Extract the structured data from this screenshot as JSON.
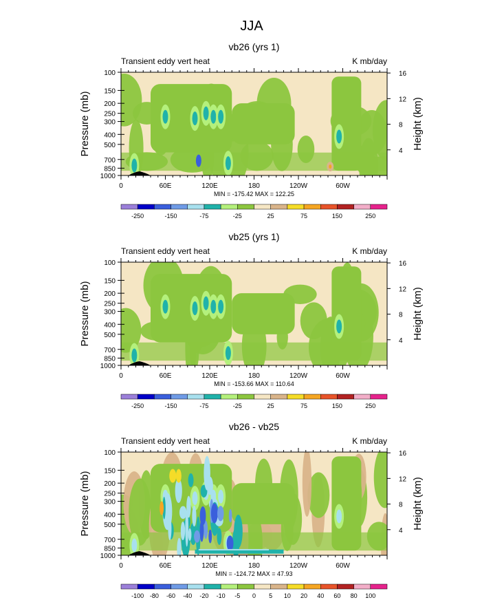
{
  "main_title": "JJA",
  "x_ticks": [
    "0",
    "60E",
    "120E",
    "180",
    "120W",
    "60W"
  ],
  "pressure_ticks": [
    "100",
    "150",
    "200",
    "250",
    "300",
    "400",
    "500",
    "700",
    "850",
    "1000"
  ],
  "height_ticks": [
    "16",
    "12",
    "8",
    "4"
  ],
  "y_label_left": "Pressure (mb)",
  "y_label_right": "Height (km)",
  "colors": {
    "palette_main": [
      "#9b7fd9",
      "#0000c8",
      "#3a5fdc",
      "#6f9be6",
      "#a8e0ee",
      "#20b2aa",
      "#b4f07c",
      "#8cc63f",
      "#f5e6c4",
      "#d9b48a",
      "#f5dc28",
      "#f5a623",
      "#e8542a",
      "#b22222",
      "#f2aec8",
      "#e6238c"
    ],
    "palette_diff": [
      "#9b7fd9",
      "#0000c8",
      "#3a5fdc",
      "#6f9be6",
      "#a8e0ee",
      "#20b2aa",
      "#b4f07c",
      "#8cc63f",
      "#f5e6c4",
      "#d9b48a",
      "#f5dc28",
      "#f5a623",
      "#e8542a",
      "#b22222",
      "#f2aec8",
      "#e6238c"
    ]
  },
  "chart_data": [
    {
      "type": "heatmap",
      "title": "vb26 (yrs 1)",
      "left_label": "Transient eddy vert heat",
      "right_label": "K mb/day",
      "xlabel": "",
      "ylabel": "Pressure (mb)",
      "y2label": "Height (km)",
      "xlim": [
        0,
        360
      ],
      "ylim": [
        1000,
        100
      ],
      "stats": "MIN = -175.42  MAX = 122.25",
      "colorbar_levels": [
        -250,
        -200,
        -150,
        -100,
        -75,
        -50,
        -25,
        -10,
        10,
        25,
        50,
        75,
        100,
        150,
        200,
        250
      ],
      "colorbar_labels": [
        "-250",
        "-150",
        "-75",
        "-25",
        "25",
        "75",
        "150",
        "250"
      ]
    },
    {
      "type": "heatmap",
      "title": "vb25 (yrs 1)",
      "left_label": "Transient eddy vert heat",
      "right_label": "K mb/day",
      "xlabel": "",
      "ylabel": "Pressure (mb)",
      "y2label": "Height (km)",
      "xlim": [
        0,
        360
      ],
      "ylim": [
        1000,
        100
      ],
      "stats": "MIN = -153.66  MAX = 110.64",
      "colorbar_levels": [
        -250,
        -200,
        -150,
        -100,
        -75,
        -50,
        -25,
        -10,
        10,
        25,
        50,
        75,
        100,
        150,
        200,
        250
      ],
      "colorbar_labels": [
        "-250",
        "-150",
        "-75",
        "-25",
        "25",
        "75",
        "150",
        "250"
      ]
    },
    {
      "type": "heatmap",
      "title": "vb26 - vb25",
      "left_label": "Transient eddy vert heat",
      "right_label": "K mb/day",
      "xlabel": "",
      "ylabel": "Pressure (mb)",
      "y2label": "Height (km)",
      "xlim": [
        0,
        360
      ],
      "ylim": [
        1000,
        100
      ],
      "stats": "MIN = -124.72  MAX = 47.93",
      "colorbar_levels": [
        -100,
        -80,
        -60,
        -40,
        -20,
        -10,
        -5,
        0,
        5,
        10,
        20,
        40,
        60,
        80,
        100
      ],
      "colorbar_labels": [
        "-100",
        "-80",
        "-60",
        "-40",
        "-20",
        "-10",
        "-5",
        "0",
        "5",
        "10",
        "20",
        "40",
        "60",
        "80",
        "100"
      ]
    }
  ]
}
